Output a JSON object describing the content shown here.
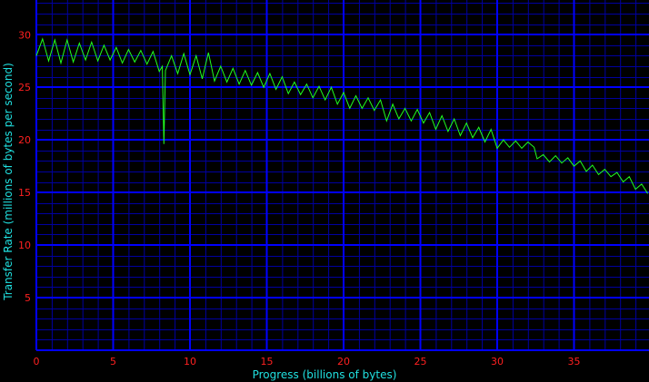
{
  "chart_data": {
    "type": "line",
    "title": "",
    "xlabel": "Progress (billions of bytes)",
    "ylabel": "Transfer Rate (millions of bytes per second)",
    "xlim": [
      0,
      40
    ],
    "ylim": [
      0,
      33.3
    ],
    "x_ticks": [
      0,
      5,
      10,
      15,
      20,
      25,
      30,
      35
    ],
    "y_ticks": [
      5,
      10,
      15,
      20,
      25,
      30
    ],
    "grid": true,
    "colors": {
      "background": "#000000",
      "major_grid": "#0000ff",
      "minor_grid": "#0000a0",
      "line": "#20ff20",
      "tick_labels": "#ff2020",
      "axis_labels": "#20e0e0"
    },
    "series": [
      {
        "x": [
          0,
          0.4,
          0.8,
          1.2,
          1.6,
          2.0,
          2.4,
          2.8,
          3.2,
          3.6,
          4.0,
          4.4,
          4.8,
          5.2,
          5.6,
          6.0,
          6.4,
          6.8,
          7.2,
          7.6,
          8.0,
          8.2,
          8.3,
          8.4,
          8.8,
          9.2,
          9.6,
          10.0,
          10.4,
          10.8,
          11.2,
          11.6,
          12.0,
          12.4,
          12.8,
          13.2,
          13.6,
          14.0,
          14.4,
          14.8,
          15.2,
          15.6,
          16.0,
          16.4,
          16.8,
          17.2,
          17.6,
          18.0,
          18.4,
          18.8,
          19.2,
          19.6,
          20.0,
          20.4,
          20.8,
          21.2,
          21.6,
          22.0,
          22.4,
          22.8,
          23.2,
          23.6,
          24.0,
          24.4,
          24.8,
          25.2,
          25.6,
          26.0,
          26.4,
          26.8,
          27.2,
          27.6,
          28.0,
          28.4,
          28.8,
          29.2,
          29.6,
          30.0,
          30.4,
          30.8,
          31.2,
          31.6,
          32.0,
          32.4,
          32.6,
          33.0,
          33.4,
          33.8,
          34.2,
          34.6,
          35.0,
          35.4,
          35.8,
          36.2,
          36.6,
          37.0,
          37.4,
          37.8,
          38.2,
          38.6,
          39.0,
          39.4,
          39.8
        ],
        "y": [
          28.0,
          29.6,
          27.5,
          29.5,
          27.3,
          29.5,
          27.4,
          29.2,
          27.6,
          29.3,
          27.5,
          29.0,
          27.6,
          28.8,
          27.3,
          28.6,
          27.4,
          28.5,
          27.2,
          28.4,
          26.5,
          27.0,
          19.6,
          26.6,
          28.0,
          26.3,
          28.2,
          26.2,
          28.0,
          25.8,
          28.3,
          25.6,
          27.0,
          25.5,
          26.8,
          25.3,
          26.6,
          25.2,
          26.4,
          25.0,
          26.3,
          24.8,
          26.0,
          24.4,
          25.5,
          24.3,
          25.3,
          24.0,
          25.1,
          23.8,
          25.0,
          23.4,
          24.5,
          23.0,
          24.2,
          23.0,
          24.0,
          22.8,
          23.8,
          21.8,
          23.4,
          22.0,
          23.0,
          21.8,
          22.9,
          21.6,
          22.6,
          21.0,
          22.3,
          20.8,
          22.0,
          20.4,
          21.6,
          20.2,
          21.2,
          19.8,
          21.0,
          19.2,
          20.0,
          19.3,
          19.9,
          19.2,
          19.8,
          19.3,
          18.2,
          18.6,
          17.9,
          18.5,
          17.8,
          18.3,
          17.5,
          18.0,
          17.0,
          17.6,
          16.7,
          17.2,
          16.5,
          16.9,
          16.0,
          16.5,
          15.3,
          15.8,
          14.9
        ]
      }
    ]
  }
}
